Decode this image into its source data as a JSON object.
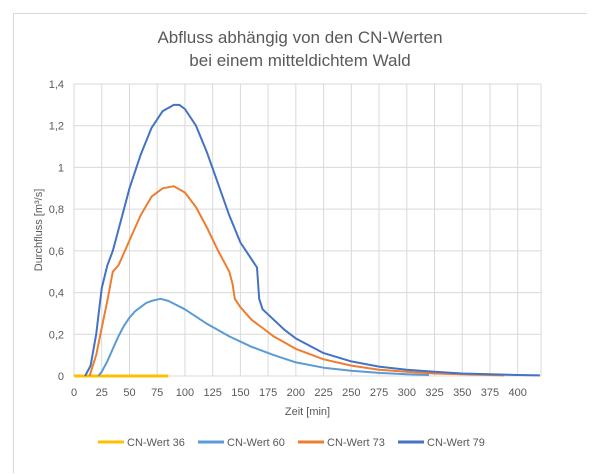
{
  "chart_data": {
    "type": "line",
    "title": [
      "Abfluss abhängig von den CN-Werten",
      "bei einem mitteldichtem Wald"
    ],
    "xlabel": "Zeit [min]",
    "ylabel": "Durchfluss [m³/s]",
    "xlim": [
      0,
      421
    ],
    "ylim": [
      0,
      1.4
    ],
    "xticks": [
      0,
      25,
      50,
      75,
      100,
      125,
      150,
      175,
      200,
      225,
      250,
      275,
      300,
      325,
      350,
      375,
      400
    ],
    "yticks": [
      0,
      0.2,
      0.4,
      0.6,
      0.8,
      1,
      1.2,
      1.4
    ],
    "ytick_labels": [
      "0",
      "0,2",
      "0,4",
      "0,6",
      "0,8",
      "1",
      "1,2",
      "1,4"
    ],
    "grid": true,
    "legend": "bottom",
    "series": [
      {
        "name": "CN-Wert 36",
        "color": "#ffc000",
        "x": [
          0,
          85
        ],
        "y": [
          0,
          0
        ]
      },
      {
        "name": "CN-Wert 60",
        "color": "#5b9bd5",
        "x": [
          22,
          25,
          30,
          35,
          40,
          45,
          50,
          55,
          60,
          65,
          70,
          78,
          85,
          100,
          120,
          140,
          160,
          180,
          200,
          225,
          250,
          275,
          300,
          320
        ],
        "y": [
          0,
          0.02,
          0.07,
          0.13,
          0.19,
          0.24,
          0.28,
          0.31,
          0.33,
          0.35,
          0.36,
          0.37,
          0.36,
          0.32,
          0.25,
          0.19,
          0.14,
          0.1,
          0.065,
          0.04,
          0.025,
          0.015,
          0.008,
          0.005
        ]
      },
      {
        "name": "CN-Wert 73",
        "color": "#ed7d31",
        "x": [
          14,
          20,
          25,
          30,
          35,
          40,
          50,
          60,
          70,
          80,
          90,
          100,
          110,
          120,
          130,
          140,
          143,
          145,
          150,
          160,
          170,
          180,
          200,
          225,
          250,
          275,
          300,
          325,
          350,
          375,
          388
        ],
        "y": [
          0,
          0.1,
          0.23,
          0.36,
          0.5,
          0.53,
          0.65,
          0.77,
          0.86,
          0.9,
          0.91,
          0.88,
          0.81,
          0.71,
          0.6,
          0.5,
          0.44,
          0.37,
          0.33,
          0.27,
          0.23,
          0.19,
          0.13,
          0.08,
          0.05,
          0.03,
          0.02,
          0.012,
          0.008,
          0.005,
          0.003
        ]
      },
      {
        "name": "CN-Wert 79",
        "color": "#4472c4",
        "x": [
          10,
          15,
          20,
          25,
          30,
          35,
          40,
          50,
          60,
          70,
          80,
          90,
          95,
          100,
          110,
          120,
          130,
          140,
          150,
          160,
          165,
          167,
          170,
          180,
          190,
          200,
          225,
          250,
          275,
          300,
          325,
          350,
          375,
          400,
          420
        ],
        "y": [
          0,
          0.05,
          0.2,
          0.42,
          0.53,
          0.6,
          0.7,
          0.9,
          1.06,
          1.19,
          1.27,
          1.3,
          1.3,
          1.28,
          1.2,
          1.07,
          0.92,
          0.77,
          0.64,
          0.56,
          0.52,
          0.37,
          0.32,
          0.27,
          0.22,
          0.18,
          0.11,
          0.07,
          0.045,
          0.03,
          0.02,
          0.012,
          0.008,
          0.005,
          0.003
        ]
      }
    ]
  }
}
